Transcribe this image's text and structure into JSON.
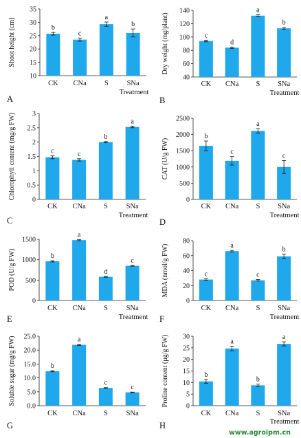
{
  "chart_data": [
    {
      "panel": "A",
      "type": "bar",
      "categories": [
        "CK",
        "CNa",
        "S",
        "SNa"
      ],
      "values": [
        25.7,
        23.5,
        29.3,
        26.0
      ],
      "errors": [
        0.5,
        0.6,
        0.8,
        1.5
      ],
      "significance": [
        "b",
        "c",
        "a",
        "b"
      ],
      "ylabel": "Shoot height (cm)",
      "xlabel": "Treatment",
      "ylim": [
        10,
        35
      ],
      "yticks": [
        "10",
        "15",
        "20",
        "25",
        "30",
        "35"
      ],
      "bar_color": "#1fa8ec"
    },
    {
      "panel": "B",
      "type": "bar",
      "categories": [
        "CK",
        "CNa",
        "S",
        "SNa"
      ],
      "values": [
        94,
        84,
        132,
        113
      ],
      "errors": [
        1.2,
        1.0,
        1.5,
        1.5
      ],
      "significance": [
        "c",
        "d",
        "a",
        "b"
      ],
      "ylabel": "Dry weight (mg/plant)",
      "xlabel": "Treatment",
      "ylim": [
        40,
        140
      ],
      "yticks": [
        "40",
        "60",
        "80",
        "100",
        "120",
        "140"
      ],
      "bar_color": "#1fa8ec"
    },
    {
      "panel": "C",
      "type": "bar",
      "categories": [
        "CK",
        "CNa",
        "S",
        "SNa"
      ],
      "values": [
        1.47,
        1.38,
        2.0,
        2.53
      ],
      "errors": [
        0.05,
        0.04,
        0.02,
        0.03
      ],
      "significance": [
        "c",
        "c",
        "b",
        "a"
      ],
      "ylabel": "Chlorophyll content (mg/g FW)",
      "xlabel": "Treatment",
      "ylim": [
        0,
        3
      ],
      "yticks": [
        "0",
        "0.5",
        "1",
        "1.5",
        "2",
        "2.5",
        "3"
      ],
      "bar_color": "#1fa8ec"
    },
    {
      "panel": "D",
      "type": "bar",
      "categories": [
        "CK",
        "CNa",
        "S",
        "SNa"
      ],
      "values": [
        1650,
        1190,
        2110,
        1000
      ],
      "errors": [
        150,
        130,
        70,
        200
      ],
      "significance": [
        "b",
        "c",
        "a",
        "c"
      ],
      "ylabel": "CAT (U/g FW)",
      "xlabel": "Treatment",
      "ylim": [
        0,
        2500
      ],
      "yticks": [
        "0",
        "500",
        "1000",
        "1500",
        "2000",
        "2500"
      ],
      "bar_color": "#1fa8ec"
    },
    {
      "panel": "E",
      "type": "bar",
      "categories": [
        "CK",
        "CNa",
        "S",
        "SNa"
      ],
      "values": [
        960,
        1480,
        580,
        850
      ],
      "errors": [
        15,
        15,
        10,
        10
      ],
      "significance": [
        "b",
        "a",
        "d",
        "c"
      ],
      "ylabel": "POD (U/g FW)",
      "xlabel": "Treatment",
      "ylim": [
        0,
        1500
      ],
      "yticks": [
        "0",
        "500",
        "1000",
        "1500"
      ],
      "bar_color": "#1fa8ec"
    },
    {
      "panel": "F",
      "type": "bar",
      "categories": [
        "CK",
        "CNa",
        "S",
        "SNa"
      ],
      "values": [
        28,
        66,
        27,
        59
      ],
      "errors": [
        1,
        1,
        1,
        3
      ],
      "significance": [
        "c",
        "a",
        "c",
        "b"
      ],
      "ylabel": "MDA (nmol/g FW)",
      "xlabel": "Treatment",
      "ylim": [
        0,
        80
      ],
      "yticks": [
        "0",
        "20",
        "40",
        "60",
        "80"
      ],
      "bar_color": "#1fa8ec"
    },
    {
      "panel": "G",
      "type": "bar",
      "categories": [
        "CK",
        "CNa",
        "S",
        "SNa"
      ],
      "values": [
        12.4,
        21.9,
        6.4,
        4.8
      ],
      "errors": [
        0.2,
        0.2,
        0.1,
        0.1
      ],
      "significance": [
        "b",
        "a",
        "c",
        "c"
      ],
      "ylabel": "Soluble sugar (mg/g FW)",
      "xlabel": "",
      "ylim": [
        0,
        25
      ],
      "yticks": [
        "0.0",
        "5.0",
        "10.0",
        "15.0",
        "20.0",
        "25.0"
      ],
      "bar_color": "#1fa8ec"
    },
    {
      "panel": "H",
      "type": "bar",
      "categories": [
        "CK",
        "CNa",
        "S",
        "SNa"
      ],
      "values": [
        10.5,
        24.7,
        8.8,
        26.7
      ],
      "errors": [
        0.8,
        1.0,
        0.5,
        0.9
      ],
      "significance": [
        "b",
        "a",
        "b",
        "a"
      ],
      "ylabel": "Proline content (μg/g FW)",
      "xlabel": "Treatment",
      "ylim": [
        0,
        30
      ],
      "yticks": [
        "0",
        "5",
        "10",
        "15",
        "20",
        "25",
        "30"
      ],
      "bar_color": "#1fa8ec"
    }
  ],
  "watermark": "www.agroipm.cn",
  "watermark_color": "#2e8b3a"
}
